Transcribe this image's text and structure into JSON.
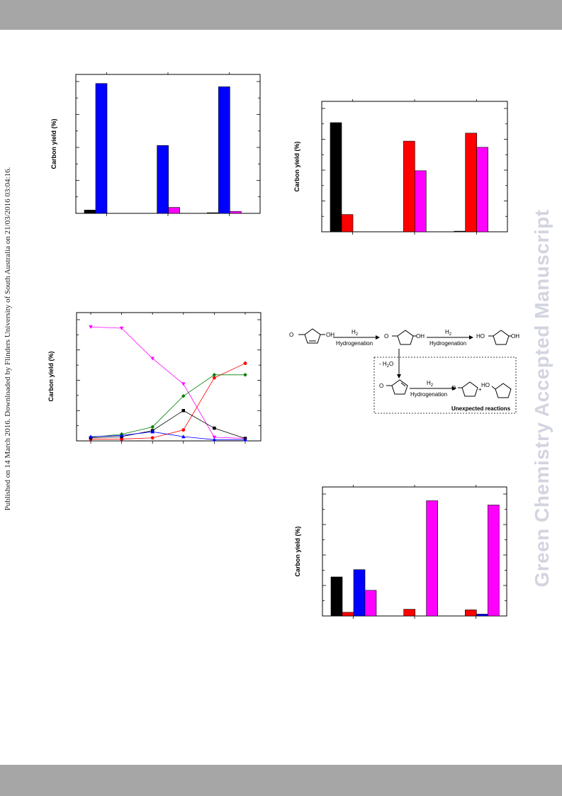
{
  "page": {
    "watermark": "Green Chemistry Accepted Manuscript",
    "side_note": "Published on 14 March 2016. Downloaded by Flinders University of South Australia on 21/03/2016 03:04:16.",
    "header_bar_color": "#a6a6a6",
    "footer_bar_color": "#a6a6a6"
  },
  "chart_data": [
    {
      "id": "top-left",
      "type": "bar",
      "ylabel": "Carbon yield (%)",
      "ylim": [
        0,
        100
      ],
      "categories": [
        "",
        "",
        ""
      ],
      "series": [
        {
          "color": "#000000",
          "values": [
            2.5,
            0,
            0.5
          ]
        },
        {
          "color": "#0000ff",
          "values": [
            98.5,
            51.5,
            96
          ]
        },
        {
          "color": "#ff00ff",
          "values": [
            0,
            4.5,
            1.5
          ]
        }
      ]
    },
    {
      "id": "top-right",
      "type": "bar",
      "ylabel": "Carbon yield (%)",
      "ylim": [
        0,
        100
      ],
      "categories": [
        "",
        "",
        ""
      ],
      "series": [
        {
          "color": "#000000",
          "values": [
            88.5,
            0,
            0.5
          ]
        },
        {
          "color": "#ff0000",
          "values": [
            14,
            73.5,
            80
          ]
        },
        {
          "color": "#ff00ff",
          "values": [
            0,
            49.5,
            68.5
          ]
        }
      ]
    },
    {
      "id": "middle-left",
      "type": "line",
      "ylabel": "Carbon yield (%)",
      "ylim": [
        0,
        100
      ],
      "x": [
        1,
        2,
        3,
        4,
        5,
        6
      ],
      "series": [
        {
          "color": "#ff00ff",
          "marker": "triangle-down",
          "values": [
            94,
            93,
            68,
            47,
            3,
            2
          ]
        },
        {
          "color": "#ff0000",
          "marker": "circle",
          "values": [
            1.5,
            1.5,
            2.5,
            9,
            52,
            64
          ]
        },
        {
          "color": "#008000",
          "marker": "diamond",
          "values": [
            3,
            5.5,
            11.5,
            37,
            54.5,
            54.5
          ]
        },
        {
          "color": "#000000",
          "marker": "square",
          "values": [
            2.5,
            3.5,
            8.5,
            25,
            10.5,
            2
          ]
        },
        {
          "color": "#0000ff",
          "marker": "triangle-up",
          "values": [
            3.5,
            4.5,
            7.5,
            3.5,
            1,
            1
          ]
        }
      ]
    },
    {
      "id": "bottom-right",
      "type": "bar",
      "ylabel": "Carbon yield (%)",
      "ylim": [
        0,
        100
      ],
      "categories": [
        "",
        "",
        ""
      ],
      "series": [
        {
          "color": "#000000",
          "values": [
            32,
            0,
            0
          ]
        },
        {
          "color": "#ff0000",
          "values": [
            3,
            5.5,
            5
          ]
        },
        {
          "color": "#0000ff",
          "values": [
            38,
            0,
            1.5
          ]
        },
        {
          "color": "#ff00ff",
          "values": [
            21,
            94.5,
            91
          ]
        }
      ]
    }
  ],
  "scheme": {
    "h2_label": "H",
    "h2_sub": "2",
    "hydrogenation": "Hydrogenation",
    "water_loss": "- H",
    "water_sub": "2",
    "water_o": "O",
    "oh": "OH",
    "ho": "HO",
    "o": "O",
    "plus": "+",
    "unexpected": "Unexpected reactions"
  }
}
